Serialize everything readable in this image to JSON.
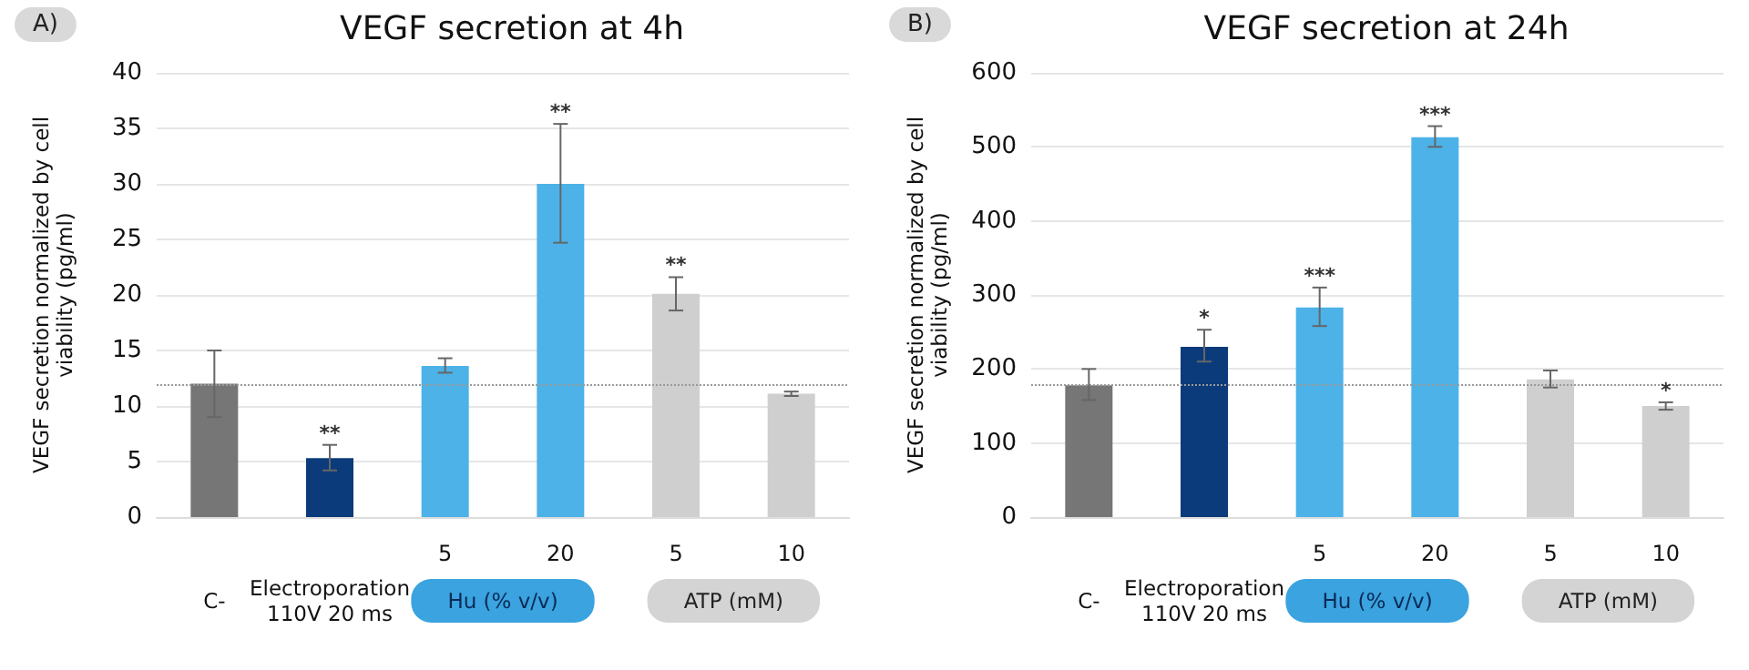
{
  "chart_data": [
    {
      "type": "bar",
      "title": "VEGF secretion at 4h",
      "ylabel": "VEGF secretion normalized by cell\nviability (pg/ml)",
      "categories": [
        null,
        null,
        "5",
        "20",
        "5",
        "10"
      ],
      "values": [
        12,
        5.3,
        13.6,
        30,
        20.1,
        11.1
      ],
      "colors": [
        "#767676",
        "#0b3b7a",
        "#4cb2e8",
        "#4cb2e8",
        "#cfcfcf",
        "#cfcfcf"
      ],
      "errors": [
        [
          9,
          15
        ],
        [
          4.2,
          6.5
        ],
        [
          13,
          14.3
        ],
        [
          24.7,
          35.4
        ],
        [
          18.6,
          21.6
        ],
        [
          10.9,
          11.3
        ]
      ],
      "value_labels": [
        null,
        "**",
        null,
        "**",
        "**",
        null
      ],
      "ylim": [
        0,
        40
      ],
      "yticks": [
        0,
        5,
        10,
        15,
        20,
        25,
        30,
        35,
        40
      ],
      "grid": "y",
      "ref_lines": [
        {
          "axis": "y",
          "value": 12,
          "color": "#9a9a9a",
          "line_style": "dotted"
        }
      ],
      "annotations": [
        "A)",
        "C-",
        "Electroporation\n110V 20 ms",
        "Hu (% v/v)",
        "ATP (mM)"
      ]
    },
    {
      "type": "bar",
      "title": "VEGF secretion at 24h",
      "ylabel": "VEGF secretion normalized by cell\nviability (pg/ml)",
      "categories": [
        null,
        null,
        "5",
        "20",
        "5",
        "10"
      ],
      "values": [
        178,
        230,
        283,
        513,
        186,
        150
      ],
      "colors": [
        "#767676",
        "#0b3b7a",
        "#4cb2e8",
        "#4cb2e8",
        "#cfcfcf",
        "#cfcfcf"
      ],
      "errors": [
        [
          158,
          200
        ],
        [
          210,
          253
        ],
        [
          258,
          310
        ],
        [
          500,
          528
        ],
        [
          175,
          198
        ],
        [
          145,
          155
        ]
      ],
      "value_labels": [
        null,
        "*",
        "***",
        "***",
        null,
        "*"
      ],
      "ylim": [
        0,
        600
      ],
      "yticks": [
        0,
        100,
        200,
        300,
        400,
        500,
        600
      ],
      "grid": "y",
      "ref_lines": [
        {
          "axis": "y",
          "value": 178,
          "color": "#9a9a9a",
          "line_style": "dotted"
        }
      ],
      "annotations": [
        "B)",
        "C-",
        "Electroporation\n110V 20 ms",
        "Hu (% v/v)",
        "ATP (mM)"
      ]
    }
  ]
}
